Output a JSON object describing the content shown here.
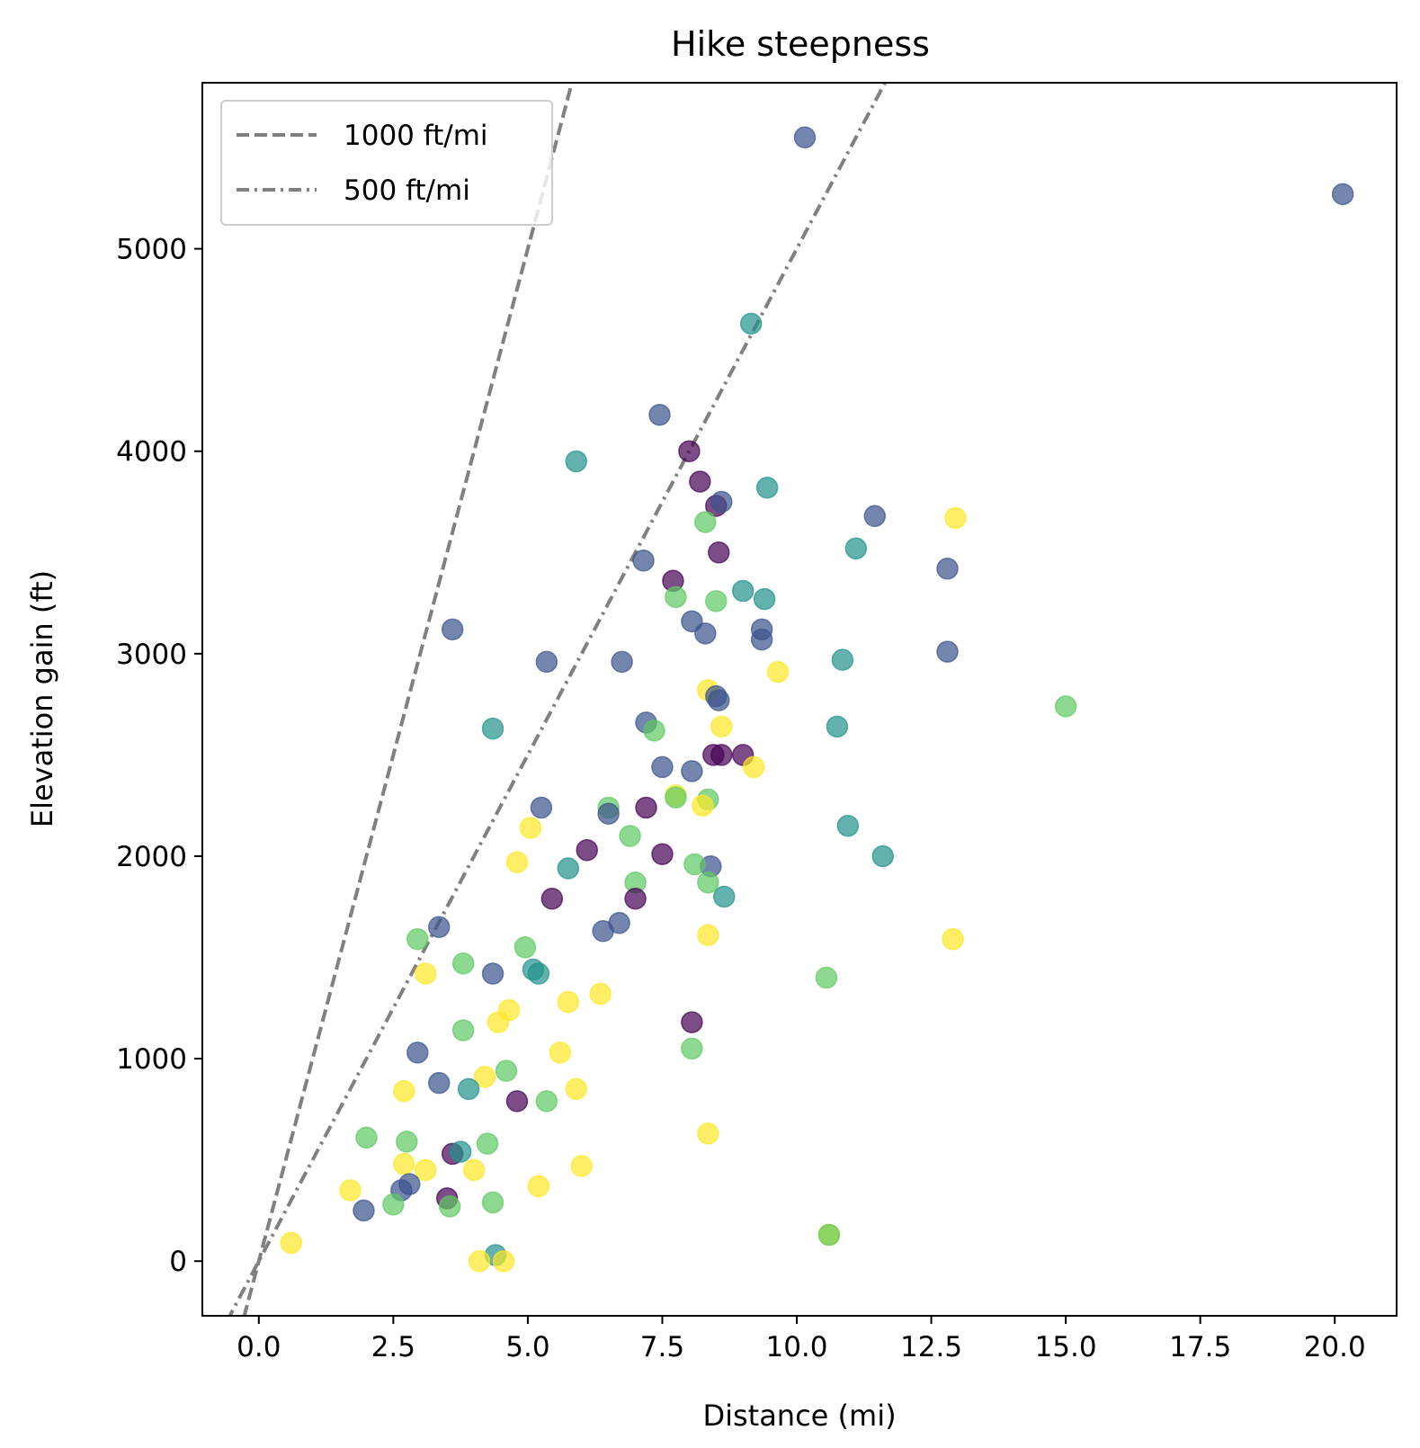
{
  "chart_data": {
    "type": "scatter",
    "title": "Hike steepness",
    "xlabel": "Distance (mi)",
    "ylabel": "Elevation gain (ft)",
    "xlim": [
      -1.05,
      21.15
    ],
    "ylim": [
      -270,
      5820
    ],
    "xticks": [
      "0.0",
      "2.5",
      "5.0",
      "7.5",
      "10.0",
      "12.5",
      "15.0",
      "17.5",
      "20.0"
    ],
    "xtick_values": [
      0,
      2.5,
      5,
      7.5,
      10,
      12.5,
      15,
      17.5,
      20
    ],
    "yticks": [
      "0",
      "1000",
      "2000",
      "3000",
      "4000",
      "5000"
    ],
    "ytick_values": [
      0,
      1000,
      2000,
      3000,
      4000,
      5000
    ],
    "grid": false,
    "legend_position": "top-left",
    "reference_lines": [
      {
        "name": "1000 ft/mi",
        "slope": 1000,
        "style": "dashed",
        "color": "#808080"
      },
      {
        "name": "500 ft/mi",
        "slope": 500,
        "style": "dashdot",
        "color": "#808080"
      }
    ],
    "colormap": "viridis",
    "point_alpha": 0.7,
    "color_groups": {
      "purple": "#440154",
      "blue": "#3b528b",
      "teal": "#21918c",
      "green": "#5ec962",
      "yellow": "#fde725"
    },
    "points": [
      {
        "x": 10.15,
        "y": 5550,
        "c": "blue"
      },
      {
        "x": 20.15,
        "y": 5270,
        "c": "blue"
      },
      {
        "x": 9.15,
        "y": 4630,
        "c": "teal"
      },
      {
        "x": 7.45,
        "y": 4180,
        "c": "blue"
      },
      {
        "x": 8.0,
        "y": 4000,
        "c": "purple"
      },
      {
        "x": 5.9,
        "y": 3950,
        "c": "teal"
      },
      {
        "x": 8.2,
        "y": 3850,
        "c": "purple"
      },
      {
        "x": 9.45,
        "y": 3820,
        "c": "teal"
      },
      {
        "x": 8.5,
        "y": 3730,
        "c": "purple"
      },
      {
        "x": 8.6,
        "y": 3750,
        "c": "blue"
      },
      {
        "x": 11.45,
        "y": 3680,
        "c": "blue"
      },
      {
        "x": 12.95,
        "y": 3670,
        "c": "yellow"
      },
      {
        "x": 8.3,
        "y": 3650,
        "c": "green"
      },
      {
        "x": 11.1,
        "y": 3520,
        "c": "teal"
      },
      {
        "x": 8.55,
        "y": 3500,
        "c": "purple"
      },
      {
        "x": 7.15,
        "y": 3460,
        "c": "blue"
      },
      {
        "x": 12.8,
        "y": 3420,
        "c": "blue"
      },
      {
        "x": 7.7,
        "y": 3360,
        "c": "purple"
      },
      {
        "x": 9.0,
        "y": 3310,
        "c": "teal"
      },
      {
        "x": 7.75,
        "y": 3280,
        "c": "green"
      },
      {
        "x": 9.4,
        "y": 3270,
        "c": "teal"
      },
      {
        "x": 8.5,
        "y": 3260,
        "c": "green"
      },
      {
        "x": 8.05,
        "y": 3160,
        "c": "blue"
      },
      {
        "x": 3.6,
        "y": 3120,
        "c": "blue"
      },
      {
        "x": 9.35,
        "y": 3120,
        "c": "blue"
      },
      {
        "x": 8.3,
        "y": 3100,
        "c": "blue"
      },
      {
        "x": 9.35,
        "y": 3070,
        "c": "blue"
      },
      {
        "x": 12.8,
        "y": 3010,
        "c": "blue"
      },
      {
        "x": 10.85,
        "y": 2970,
        "c": "teal"
      },
      {
        "x": 5.35,
        "y": 2960,
        "c": "blue"
      },
      {
        "x": 6.75,
        "y": 2960,
        "c": "blue"
      },
      {
        "x": 9.65,
        "y": 2910,
        "c": "yellow"
      },
      {
        "x": 8.35,
        "y": 2820,
        "c": "yellow"
      },
      {
        "x": 8.5,
        "y": 2790,
        "c": "blue"
      },
      {
        "x": 8.55,
        "y": 2770,
        "c": "blue"
      },
      {
        "x": 15.0,
        "y": 2740,
        "c": "green"
      },
      {
        "x": 7.2,
        "y": 2660,
        "c": "blue"
      },
      {
        "x": 4.35,
        "y": 2630,
        "c": "teal"
      },
      {
        "x": 10.75,
        "y": 2640,
        "c": "teal"
      },
      {
        "x": 8.6,
        "y": 2640,
        "c": "yellow"
      },
      {
        "x": 7.35,
        "y": 2620,
        "c": "green"
      },
      {
        "x": 8.45,
        "y": 2500,
        "c": "purple"
      },
      {
        "x": 8.6,
        "y": 2500,
        "c": "purple"
      },
      {
        "x": 9.0,
        "y": 2500,
        "c": "purple"
      },
      {
        "x": 9.2,
        "y": 2440,
        "c": "yellow"
      },
      {
        "x": 7.5,
        "y": 2440,
        "c": "blue"
      },
      {
        "x": 8.05,
        "y": 2420,
        "c": "blue"
      },
      {
        "x": 7.75,
        "y": 2300,
        "c": "yellow"
      },
      {
        "x": 7.75,
        "y": 2290,
        "c": "green"
      },
      {
        "x": 8.35,
        "y": 2280,
        "c": "green"
      },
      {
        "x": 5.25,
        "y": 2240,
        "c": "blue"
      },
      {
        "x": 8.25,
        "y": 2250,
        "c": "yellow"
      },
      {
        "x": 7.2,
        "y": 2240,
        "c": "purple"
      },
      {
        "x": 6.5,
        "y": 2240,
        "c": "green"
      },
      {
        "x": 6.5,
        "y": 2210,
        "c": "blue"
      },
      {
        "x": 10.95,
        "y": 2150,
        "c": "teal"
      },
      {
        "x": 5.05,
        "y": 2140,
        "c": "yellow"
      },
      {
        "x": 6.9,
        "y": 2100,
        "c": "green"
      },
      {
        "x": 6.1,
        "y": 2030,
        "c": "purple"
      },
      {
        "x": 7.5,
        "y": 2010,
        "c": "purple"
      },
      {
        "x": 11.6,
        "y": 2000,
        "c": "teal"
      },
      {
        "x": 4.8,
        "y": 1970,
        "c": "yellow"
      },
      {
        "x": 8.4,
        "y": 1950,
        "c": "blue"
      },
      {
        "x": 8.1,
        "y": 1960,
        "c": "green"
      },
      {
        "x": 5.75,
        "y": 1940,
        "c": "teal"
      },
      {
        "x": 7.0,
        "y": 1870,
        "c": "green"
      },
      {
        "x": 8.35,
        "y": 1870,
        "c": "green"
      },
      {
        "x": 8.65,
        "y": 1800,
        "c": "teal"
      },
      {
        "x": 5.45,
        "y": 1790,
        "c": "purple"
      },
      {
        "x": 7.0,
        "y": 1790,
        "c": "purple"
      },
      {
        "x": 6.7,
        "y": 1670,
        "c": "blue"
      },
      {
        "x": 3.35,
        "y": 1650,
        "c": "blue"
      },
      {
        "x": 6.4,
        "y": 1630,
        "c": "blue"
      },
      {
        "x": 8.35,
        "y": 1610,
        "c": "yellow"
      },
      {
        "x": 2.95,
        "y": 1590,
        "c": "green"
      },
      {
        "x": 12.9,
        "y": 1590,
        "c": "yellow"
      },
      {
        "x": 4.95,
        "y": 1550,
        "c": "green"
      },
      {
        "x": 3.8,
        "y": 1470,
        "c": "green"
      },
      {
        "x": 5.1,
        "y": 1440,
        "c": "teal"
      },
      {
        "x": 5.2,
        "y": 1420,
        "c": "teal"
      },
      {
        "x": 3.1,
        "y": 1420,
        "c": "yellow"
      },
      {
        "x": 4.35,
        "y": 1420,
        "c": "blue"
      },
      {
        "x": 10.55,
        "y": 1400,
        "c": "green"
      },
      {
        "x": 6.35,
        "y": 1320,
        "c": "yellow"
      },
      {
        "x": 5.75,
        "y": 1280,
        "c": "yellow"
      },
      {
        "x": 4.65,
        "y": 1240,
        "c": "yellow"
      },
      {
        "x": 4.45,
        "y": 1180,
        "c": "yellow"
      },
      {
        "x": 8.05,
        "y": 1180,
        "c": "purple"
      },
      {
        "x": 3.8,
        "y": 1140,
        "c": "green"
      },
      {
        "x": 8.05,
        "y": 1050,
        "c": "green"
      },
      {
        "x": 2.95,
        "y": 1030,
        "c": "blue"
      },
      {
        "x": 5.6,
        "y": 1030,
        "c": "yellow"
      },
      {
        "x": 4.6,
        "y": 940,
        "c": "green"
      },
      {
        "x": 4.2,
        "y": 910,
        "c": "yellow"
      },
      {
        "x": 3.35,
        "y": 880,
        "c": "blue"
      },
      {
        "x": 3.9,
        "y": 850,
        "c": "teal"
      },
      {
        "x": 5.9,
        "y": 850,
        "c": "yellow"
      },
      {
        "x": 2.7,
        "y": 840,
        "c": "yellow"
      },
      {
        "x": 4.8,
        "y": 790,
        "c": "purple"
      },
      {
        "x": 5.35,
        "y": 790,
        "c": "green"
      },
      {
        "x": 8.35,
        "y": 630,
        "c": "yellow"
      },
      {
        "x": 2.0,
        "y": 610,
        "c": "green"
      },
      {
        "x": 2.75,
        "y": 590,
        "c": "green"
      },
      {
        "x": 4.25,
        "y": 580,
        "c": "green"
      },
      {
        "x": 3.6,
        "y": 530,
        "c": "purple"
      },
      {
        "x": 3.75,
        "y": 540,
        "c": "teal"
      },
      {
        "x": 2.7,
        "y": 480,
        "c": "yellow"
      },
      {
        "x": 6.0,
        "y": 470,
        "c": "yellow"
      },
      {
        "x": 3.1,
        "y": 450,
        "c": "yellow"
      },
      {
        "x": 4.0,
        "y": 450,
        "c": "yellow"
      },
      {
        "x": 2.8,
        "y": 380,
        "c": "blue"
      },
      {
        "x": 2.65,
        "y": 350,
        "c": "blue"
      },
      {
        "x": 1.7,
        "y": 350,
        "c": "yellow"
      },
      {
        "x": 5.2,
        "y": 370,
        "c": "yellow"
      },
      {
        "x": 3.5,
        "y": 310,
        "c": "purple"
      },
      {
        "x": 4.35,
        "y": 290,
        "c": "green"
      },
      {
        "x": 2.5,
        "y": 280,
        "c": "green"
      },
      {
        "x": 3.55,
        "y": 270,
        "c": "green"
      },
      {
        "x": 1.95,
        "y": 250,
        "c": "blue"
      },
      {
        "x": 10.6,
        "y": 130,
        "c": "yellow"
      },
      {
        "x": 10.6,
        "y": 130,
        "c": "green"
      },
      {
        "x": 0.6,
        "y": 90,
        "c": "yellow"
      },
      {
        "x": 4.4,
        "y": 30,
        "c": "teal"
      },
      {
        "x": 4.1,
        "y": 0,
        "c": "yellow"
      },
      {
        "x": 4.55,
        "y": 0,
        "c": "yellow"
      }
    ]
  }
}
